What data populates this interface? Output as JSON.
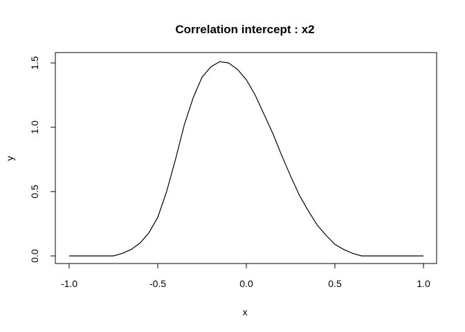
{
  "chart_data": {
    "type": "line",
    "title": "Correlation intercept : x2",
    "xlabel": "x",
    "ylabel": "y",
    "xlim": [
      -1.0,
      1.0
    ],
    "ylim": [
      0.0,
      1.5
    ],
    "xticks": [
      -1.0,
      -0.5,
      0.0,
      0.5,
      1.0
    ],
    "xtick_labels": [
      "-1.0",
      "-0.5",
      "0.0",
      "0.5",
      "1.0"
    ],
    "yticks": [
      0.0,
      0.5,
      1.0,
      1.5
    ],
    "ytick_labels": [
      "0.0",
      "0.5",
      "1.0",
      "1.5"
    ],
    "grid": false,
    "line_color": "#000000",
    "series": [
      {
        "x": [
          -1.0,
          -0.9,
          -0.8,
          -0.75,
          -0.7,
          -0.65,
          -0.6,
          -0.55,
          -0.5,
          -0.45,
          -0.4,
          -0.35,
          -0.3,
          -0.25,
          -0.2,
          -0.15,
          -0.1,
          -0.05,
          0.0,
          0.05,
          0.1,
          0.15,
          0.2,
          0.25,
          0.3,
          0.35,
          0.4,
          0.45,
          0.5,
          0.55,
          0.6,
          0.65,
          0.7,
          0.75,
          0.8,
          0.9,
          1.0
        ],
        "y": [
          0.0,
          0.0,
          0.0,
          0.0,
          0.02,
          0.05,
          0.1,
          0.18,
          0.3,
          0.5,
          0.75,
          1.02,
          1.23,
          1.39,
          1.47,
          1.51,
          1.5,
          1.45,
          1.37,
          1.25,
          1.1,
          0.95,
          0.78,
          0.62,
          0.47,
          0.35,
          0.24,
          0.16,
          0.09,
          0.05,
          0.02,
          0.0,
          0.0,
          0.0,
          0.0,
          0.0,
          0.0
        ]
      }
    ]
  }
}
